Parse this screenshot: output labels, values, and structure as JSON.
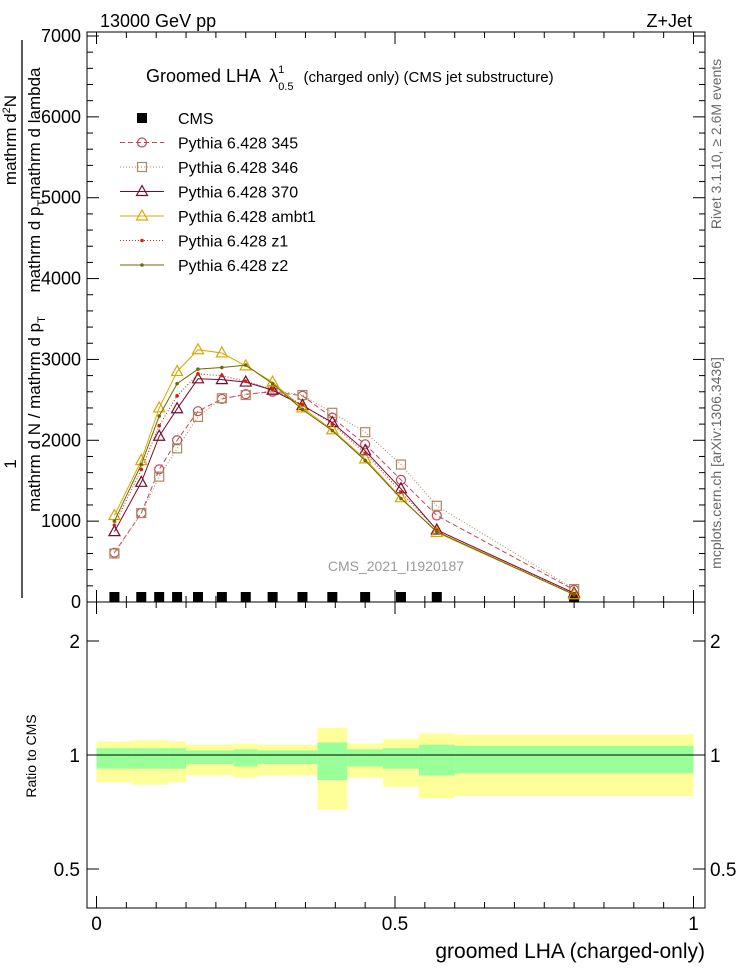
{
  "header": {
    "energy_label": "13000 GeV pp",
    "process_label": "Z+Jet"
  },
  "side_labels": {
    "rivet": "Rivet 3.1.10, ≥ 2.6M events",
    "mcplots": "mcplots.cern.ch [arXiv:1306.3436]"
  },
  "chart_data": [
    {
      "type": "line",
      "title": "Groomed LHA",
      "title_symbol": "λ",
      "title_sup": "1",
      "title_sub": "0.5",
      "title_suffix": "(charged only) (CMS jet substructure)",
      "watermark": "CMS_2021_I1920187",
      "ylabel_parts": {
        "frac_num": "1",
        "denominator": "mathrm d N / mathrm d p",
        "denominator_sub": "T",
        "numerator": "mathrm d",
        "numerator_sup": "2",
        "numerator_rest": "N",
        "numerator_line2": "mathrm d p",
        "numerator_line2_sub": "T",
        "numerator_line2_rest": "mathrm d lambda"
      },
      "xlim": [
        0,
        1
      ],
      "ylim": [
        0,
        7000
      ],
      "x_ticks": [
        "0",
        "0.5",
        "1"
      ],
      "y_ticks": [
        "0",
        "1000",
        "2000",
        "3000",
        "4000",
        "5000",
        "6000",
        "7000"
      ],
      "legend_placement": "upper-left",
      "x": [
        0.03,
        0.075,
        0.105,
        0.135,
        0.17,
        0.21,
        0.25,
        0.295,
        0.345,
        0.395,
        0.45,
        0.51,
        0.57,
        0.8
      ],
      "series": [
        {
          "name": "CMS",
          "color": "#000000",
          "marker": "square-filled",
          "dash": "none",
          "values": [
            25,
            25,
            25,
            30,
            30,
            30,
            30,
            30,
            30,
            25,
            25,
            20,
            20,
            20
          ]
        },
        {
          "name": "Pythia 6.428 345",
          "color": "#c0485a",
          "marker": "circle-open",
          "dash": "5,3",
          "values": [
            610,
            1100,
            1640,
            2000,
            2360,
            2510,
            2570,
            2600,
            2550,
            2280,
            1950,
            1510,
            1070,
            150
          ]
        },
        {
          "name": "Pythia 6.428 346",
          "color": "#b0895a",
          "marker": "square-open",
          "dash": "1,2",
          "values": [
            600,
            1100,
            1550,
            1900,
            2290,
            2520,
            2560,
            2620,
            2560,
            2340,
            2100,
            1700,
            1190,
            160
          ]
        },
        {
          "name": "Pythia 6.428 370",
          "color": "#7a0a2a",
          "marker": "triangle-open",
          "dash": "none",
          "values": [
            870,
            1480,
            2050,
            2390,
            2760,
            2750,
            2720,
            2620,
            2430,
            2220,
            1870,
            1400,
            890,
            110
          ]
        },
        {
          "name": "Pythia 6.428 ambt1",
          "color": "#d9a800",
          "marker": "triangle-open",
          "dash": "none",
          "values": [
            1070,
            1750,
            2400,
            2850,
            3120,
            3080,
            2920,
            2720,
            2400,
            2130,
            1770,
            1290,
            860,
            90
          ]
        },
        {
          "name": "Pythia 6.428 z1",
          "color": "#d02010",
          "marker": "dot",
          "dash": "1,2",
          "values": [
            950,
            1640,
            2180,
            2550,
            2820,
            2800,
            2730,
            2630,
            2440,
            2200,
            1840,
            1360,
            890,
            100
          ]
        },
        {
          "name": "Pythia 6.428 z2",
          "color": "#6e6a00",
          "marker": "dot",
          "dash": "none",
          "values": [
            1000,
            1700,
            2300,
            2700,
            2880,
            2900,
            2930,
            2700,
            2380,
            2120,
            1750,
            1280,
            870,
            90
          ]
        }
      ]
    },
    {
      "type": "area",
      "ylabel": "Ratio to CMS",
      "xlabel": "groomed LHA (charged-only)",
      "xlim": [
        0,
        1
      ],
      "ylim": [
        0.3,
        2.3
      ],
      "x_ticks": [
        "0",
        "0.5",
        "1"
      ],
      "y_ticks": [
        "0.5",
        "1",
        "2"
      ],
      "reference_line": 1,
      "bins": [
        {
          "x0": 0.0,
          "x1": 0.06,
          "y_lo": 0.88,
          "y_hi": 1.12,
          "g_lo": 0.94,
          "g_hi": 1.06
        },
        {
          "x0": 0.06,
          "x1": 0.12,
          "y_lo": 0.87,
          "y_hi": 1.13,
          "g_lo": 0.94,
          "g_hi": 1.06
        },
        {
          "x0": 0.12,
          "x1": 0.15,
          "y_lo": 0.88,
          "y_hi": 1.12,
          "g_lo": 0.94,
          "g_hi": 1.06
        },
        {
          "x0": 0.15,
          "x1": 0.23,
          "y_lo": 0.91,
          "y_hi": 1.09,
          "g_lo": 0.96,
          "g_hi": 1.04
        },
        {
          "x0": 0.23,
          "x1": 0.27,
          "y_lo": 0.9,
          "y_hi": 1.1,
          "g_lo": 0.95,
          "g_hi": 1.05
        },
        {
          "x0": 0.27,
          "x1": 0.37,
          "y_lo": 0.91,
          "y_hi": 1.09,
          "g_lo": 0.96,
          "g_hi": 1.04
        },
        {
          "x0": 0.37,
          "x1": 0.42,
          "y_lo": 0.76,
          "y_hi": 1.24,
          "g_lo": 0.89,
          "g_hi": 1.11
        },
        {
          "x0": 0.42,
          "x1": 0.48,
          "y_lo": 0.9,
          "y_hi": 1.1,
          "g_lo": 0.95,
          "g_hi": 1.05
        },
        {
          "x0": 0.48,
          "x1": 0.54,
          "y_lo": 0.86,
          "y_hi": 1.14,
          "g_lo": 0.94,
          "g_hi": 1.06
        },
        {
          "x0": 0.54,
          "x1": 0.6,
          "y_lo": 0.81,
          "y_hi": 1.19,
          "g_lo": 0.91,
          "g_hi": 1.09
        },
        {
          "x0": 0.6,
          "x1": 1.0,
          "y_lo": 0.82,
          "y_hi": 1.18,
          "g_lo": 0.92,
          "g_hi": 1.08
        }
      ],
      "band_colors": {
        "outer": "#ffff99",
        "inner": "#99ff99"
      }
    }
  ]
}
